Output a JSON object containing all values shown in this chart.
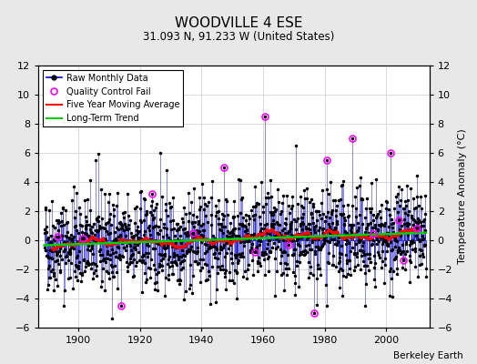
{
  "title": "WOODVILLE 4 ESE",
  "subtitle": "31.093 N, 91.233 W (United States)",
  "attribution": "Berkeley Earth",
  "ylabel": "Temperature Anomaly (°C)",
  "ylim": [
    -6,
    12
  ],
  "yticks": [
    -6,
    -4,
    -2,
    0,
    2,
    4,
    6,
    8,
    10,
    12
  ],
  "xlim": [
    1887,
    2014
  ],
  "xticks": [
    1900,
    1920,
    1940,
    1960,
    1980,
    2000
  ],
  "start_year": 1889,
  "end_year": 2012,
  "bg_color": "#e8e8e8",
  "plot_bg_color": "#ffffff",
  "raw_color": "#0000cc",
  "raw_marker_color": "#000000",
  "qc_fail_color": "#ff00ff",
  "moving_avg_color": "#ff0000",
  "trend_color": "#00cc00",
  "grid_color": "#cccccc",
  "seed": 42,
  "noise_std": 1.6,
  "n_qc_fail": 18
}
